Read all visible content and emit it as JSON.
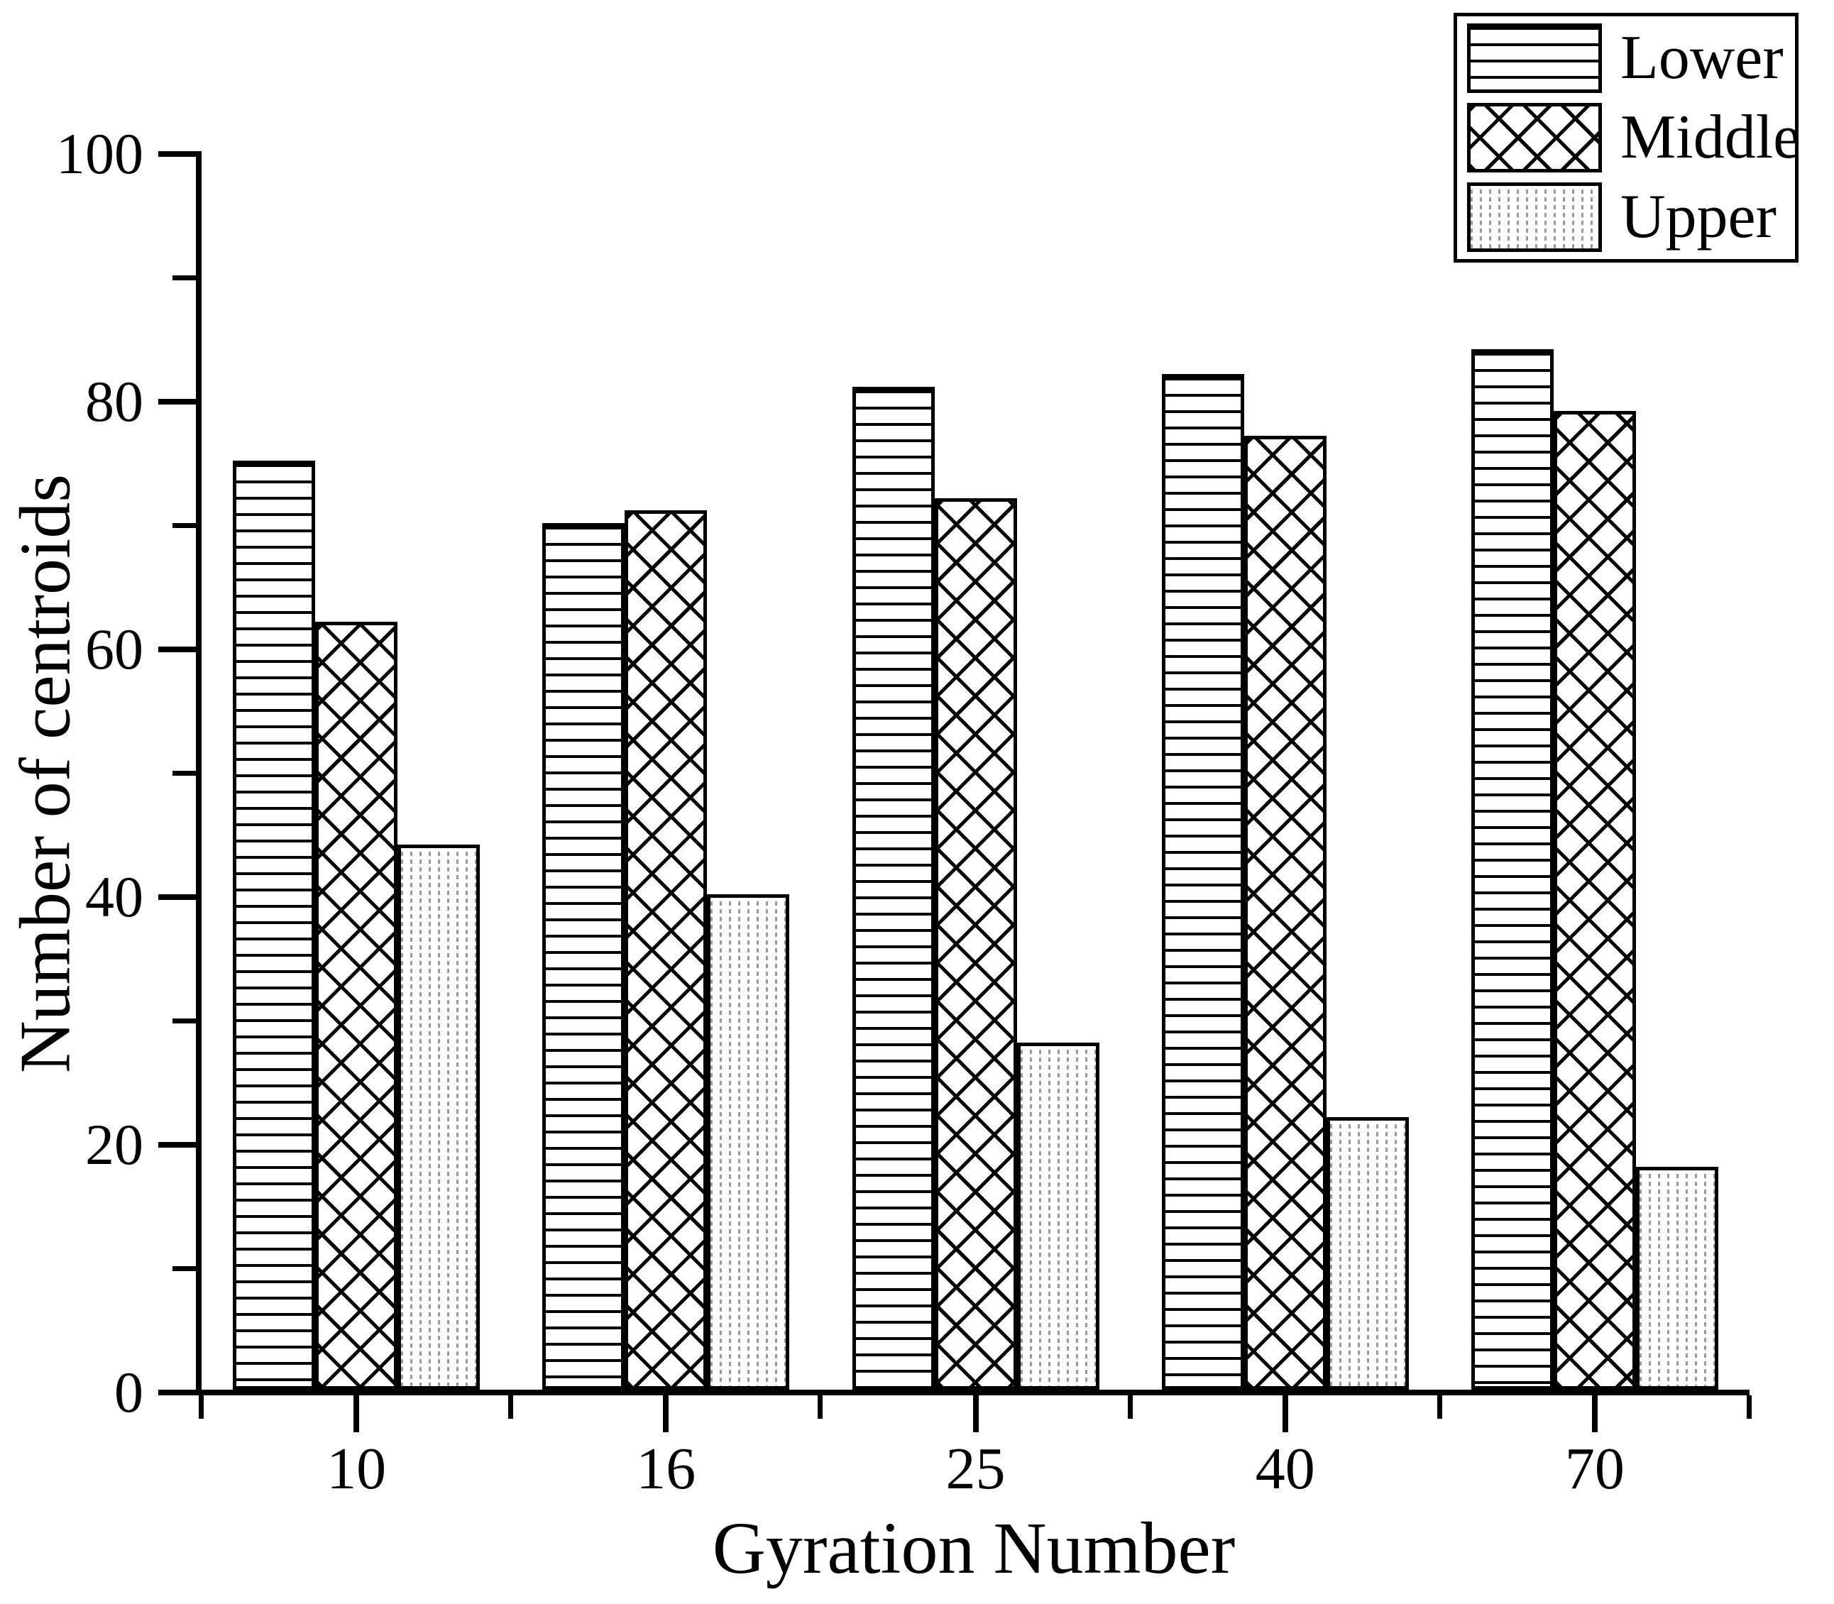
{
  "chart_data": {
    "type": "bar",
    "title": "",
    "xlabel": "Gyration Number",
    "ylabel": "Number of centroids",
    "categories": [
      "10",
      "16",
      "25",
      "40",
      "70"
    ],
    "series": [
      {
        "name": "Lower",
        "pattern": "horizontal-lines",
        "values": [
          75,
          70,
          81,
          82,
          84
        ]
      },
      {
        "name": "Middle",
        "pattern": "crosshatch",
        "values": [
          62,
          71,
          72,
          77,
          79
        ]
      },
      {
        "name": "Upper",
        "pattern": "dotted",
        "values": [
          44,
          40,
          28,
          22,
          18
        ]
      }
    ],
    "ylim": [
      0,
      100
    ],
    "y_major_ticks": [
      0,
      20,
      40,
      60,
      80,
      100
    ],
    "y_minor_ticks": [
      10,
      30,
      50,
      70,
      90
    ],
    "legend": {
      "position": "top-right",
      "items": [
        "Lower",
        "Middle",
        "Upper"
      ]
    },
    "grid": false,
    "axis_color": "#000000",
    "bar_border_color": "#000000",
    "dotted_pattern_color": "#9a9a9a",
    "background_color": "#ffffff"
  }
}
